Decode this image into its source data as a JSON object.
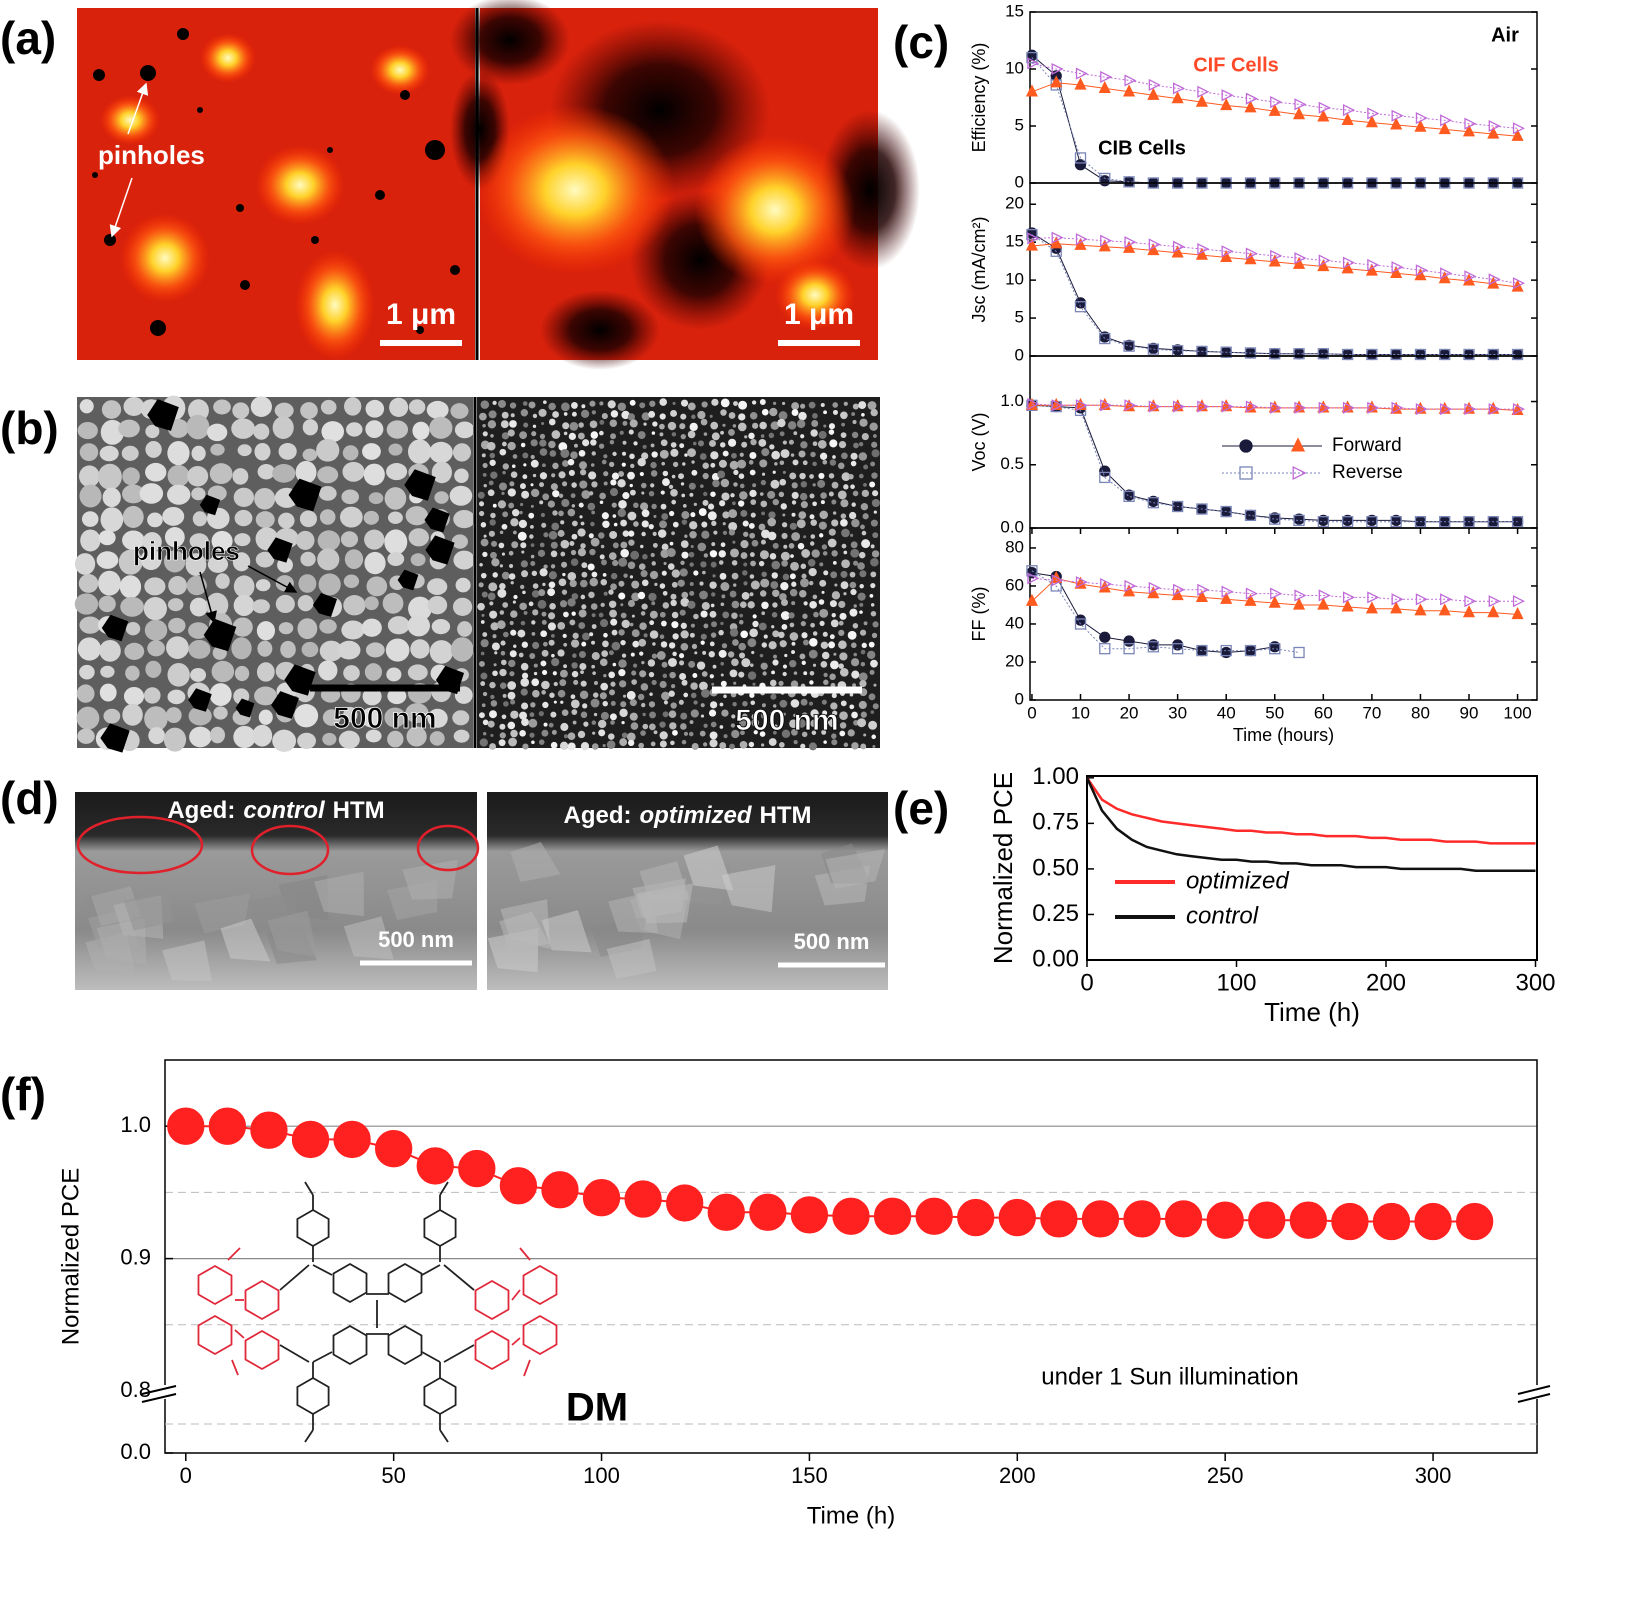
{
  "panel_labels": [
    "(a)",
    "(b)",
    "(c)",
    "(d)",
    "(e)",
    "(f)"
  ],
  "images": {
    "a": {
      "annotation": "pinholes",
      "scale_bars": [
        "1 μm",
        "1 μm"
      ]
    },
    "b": {
      "annotation": "pinholes",
      "scale_bars": [
        "500 nm",
        "500 nm"
      ]
    },
    "d": {
      "captions": [
        {
          "prefix": "Aged:",
          "emphasis": "control",
          "suffix": "HTM"
        },
        {
          "prefix": "Aged:",
          "emphasis": "optimized",
          "suffix": "HTM"
        }
      ],
      "scale_bars": [
        "500 nm",
        "500 nm"
      ]
    }
  },
  "chart_data": [
    {
      "type": "line",
      "ylabel": "Efficiency (%)",
      "annotations": [
        "Air",
        "CIF Cells",
        "CIB Cells"
      ],
      "x": [
        0,
        5,
        10,
        15,
        20,
        25,
        30,
        35,
        40,
        45,
        50,
        55,
        60,
        65,
        70,
        75,
        80,
        85,
        90,
        95,
        100
      ],
      "xlim": [
        -0.4,
        104
      ],
      "ylim": [
        0,
        15
      ],
      "yticks": [
        0,
        5,
        10,
        15
      ],
      "series": [
        {
          "color": "#1a1a3a",
          "marker": "circle",
          "filled": true,
          "line_style": "solid",
          "values": [
            11.2,
            9.4,
            1.6,
            0.2,
            0.1,
            0,
            0,
            0,
            0,
            0,
            0,
            0,
            0,
            0,
            0,
            0,
            0,
            0,
            0,
            0,
            0
          ]
        },
        {
          "color": "#7a86b8",
          "marker": "square",
          "filled": false,
          "line_style": "dotted",
          "values": [
            11.0,
            8.6,
            2.2,
            0.4,
            0.1,
            0,
            0,
            0,
            0,
            0,
            0,
            0,
            0,
            0,
            0,
            0,
            0,
            0,
            0,
            0,
            0
          ]
        },
        {
          "color": "#ff5a1f",
          "marker": "triangle",
          "filled": true,
          "line_style": "solid",
          "values": [
            8.0,
            8.8,
            8.6,
            8.3,
            8.0,
            7.7,
            7.4,
            7.1,
            6.8,
            6.6,
            6.3,
            6.0,
            5.8,
            5.5,
            5.3,
            5.1,
            4.9,
            4.7,
            4.5,
            4.3,
            4.1
          ]
        },
        {
          "color": "#c06ad8",
          "marker": "triangle-right",
          "filled": false,
          "line_style": "dotted",
          "values": [
            10.5,
            10.0,
            9.6,
            9.3,
            9.0,
            8.6,
            8.3,
            8.0,
            7.7,
            7.4,
            7.1,
            6.9,
            6.6,
            6.4,
            6.1,
            5.9,
            5.7,
            5.5,
            5.2,
            5.0,
            4.8
          ]
        }
      ]
    },
    {
      "type": "line",
      "ylabel": "Jsc (mA/cm²)",
      "x": [
        0,
        5,
        10,
        15,
        20,
        25,
        30,
        35,
        40,
        45,
        50,
        55,
        60,
        65,
        70,
        75,
        80,
        85,
        90,
        95,
        100
      ],
      "xlim": [
        -0.4,
        104
      ],
      "ylim": [
        0,
        22.8
      ],
      "yticks": [
        0,
        5,
        10,
        15,
        20
      ],
      "series": [
        {
          "color": "#1a1a3a",
          "marker": "circle",
          "filled": true,
          "line_style": "solid",
          "values": [
            16.2,
            14.2,
            7.0,
            2.5,
            1.4,
            1.0,
            0.8,
            0.6,
            0.5,
            0.4,
            0.3,
            0.3,
            0.3,
            0.2,
            0.2,
            0.2,
            0.2,
            0.2,
            0.2,
            0.2,
            0.2
          ]
        },
        {
          "color": "#7a86b8",
          "marker": "square",
          "filled": false,
          "line_style": "dotted",
          "values": [
            16.0,
            13.8,
            6.5,
            2.3,
            1.3,
            0.9,
            0.7,
            0.6,
            0.5,
            0.4,
            0.3,
            0.3,
            0.3,
            0.2,
            0.2,
            0.2,
            0.2,
            0.2,
            0.2,
            0.2,
            0.2
          ]
        },
        {
          "color": "#ff5a1f",
          "marker": "triangle",
          "filled": true,
          "line_style": "solid",
          "values": [
            14.5,
            14.8,
            14.6,
            14.4,
            14.2,
            13.9,
            13.6,
            13.3,
            13.0,
            12.7,
            12.4,
            12.1,
            11.8,
            11.5,
            11.2,
            10.9,
            10.6,
            10.2,
            9.9,
            9.5,
            9.1
          ]
        },
        {
          "color": "#c06ad8",
          "marker": "triangle-right",
          "filled": false,
          "line_style": "dotted",
          "values": [
            15.5,
            15.6,
            15.4,
            15.2,
            15.0,
            14.7,
            14.4,
            14.1,
            13.8,
            13.5,
            13.2,
            12.9,
            12.6,
            12.3,
            12.0,
            11.7,
            11.3,
            10.9,
            10.5,
            10.1,
            9.6
          ]
        }
      ]
    },
    {
      "type": "line",
      "ylabel": "Voc (V)",
      "legend": [
        "Forward",
        "Reverse"
      ],
      "x": [
        0,
        5,
        10,
        15,
        20,
        25,
        30,
        35,
        40,
        45,
        50,
        55,
        60,
        65,
        70,
        75,
        80,
        85,
        90,
        95,
        100
      ],
      "xlim": [
        -0.4,
        104
      ],
      "ylim": [
        0,
        1.36
      ],
      "yticks": [
        {
          "value": 0,
          "label": "0.0"
        },
        0.5,
        {
          "value": 1,
          "label": "1.0"
        }
      ],
      "series": [
        {
          "color": "#1a1a3a",
          "marker": "circle",
          "filled": true,
          "line_style": "solid",
          "values": [
            0.97,
            0.96,
            0.95,
            0.45,
            0.26,
            0.21,
            0.17,
            0.15,
            0.13,
            0.1,
            0.08,
            0.07,
            0.06,
            0.06,
            0.06,
            0.06,
            0.05,
            0.05,
            0.05,
            0.05,
            0.05
          ]
        },
        {
          "color": "#7a86b8",
          "marker": "square",
          "filled": false,
          "line_style": "dotted",
          "values": [
            0.97,
            0.96,
            0.93,
            0.4,
            0.25,
            0.2,
            0.17,
            0.15,
            0.13,
            0.1,
            0.07,
            0.06,
            0.05,
            0.05,
            0.05,
            0.05,
            0.05,
            0.05,
            0.05,
            0.05,
            0.05
          ]
        },
        {
          "color": "#ff5a1f",
          "marker": "triangle",
          "filled": true,
          "line_style": "solid",
          "values": [
            0.97,
            0.97,
            0.97,
            0.97,
            0.96,
            0.96,
            0.96,
            0.96,
            0.96,
            0.95,
            0.95,
            0.95,
            0.95,
            0.95,
            0.95,
            0.94,
            0.94,
            0.94,
            0.94,
            0.94,
            0.93
          ]
        },
        {
          "color": "#c06ad8",
          "marker": "triangle-right",
          "filled": false,
          "line_style": "dotted",
          "values": [
            0.98,
            0.97,
            0.97,
            0.97,
            0.97,
            0.96,
            0.96,
            0.96,
            0.96,
            0.96,
            0.95,
            0.95,
            0.95,
            0.95,
            0.95,
            0.95,
            0.94,
            0.94,
            0.94,
            0.94,
            0.94
          ]
        }
      ]
    },
    {
      "type": "line",
      "ylabel": "FF (%)",
      "xlabel": "Time (hours)",
      "x": [
        0,
        5,
        10,
        15,
        20,
        25,
        30,
        35,
        40,
        45,
        50,
        55,
        60,
        65,
        70,
        75,
        80,
        85,
        90,
        95,
        100
      ],
      "xlim": [
        -0.4,
        104
      ],
      "ylim": [
        0,
        90.5
      ],
      "yticks": [
        0,
        20,
        40,
        60,
        80
      ],
      "xticks": [
        0,
        10,
        20,
        30,
        40,
        50,
        60,
        70,
        80,
        90,
        100
      ],
      "series": [
        {
          "color": "#1a1a3a",
          "marker": "circle",
          "filled": true,
          "line_style": "solid",
          "values": [
            67,
            65,
            42,
            33,
            31,
            29,
            29,
            26,
            25,
            26,
            28,
            null,
            null,
            null,
            null,
            null,
            null,
            null,
            null,
            null,
            null
          ]
        },
        {
          "color": "#7a86b8",
          "marker": "square",
          "filled": false,
          "line_style": "dotted",
          "values": [
            68,
            60,
            40,
            27,
            27,
            28,
            27,
            26,
            26,
            26,
            27,
            25,
            null,
            null,
            null,
            null,
            null,
            null,
            null,
            null,
            null
          ]
        },
        {
          "color": "#ff5a1f",
          "marker": "triangle",
          "filled": true,
          "line_style": "solid",
          "values": [
            52,
            64,
            61,
            59,
            57,
            56,
            55,
            54,
            53,
            52,
            51,
            50,
            50,
            49,
            48,
            48,
            47,
            47,
            46,
            46,
            45
          ]
        },
        {
          "color": "#c06ad8",
          "marker": "triangle-right",
          "filled": false,
          "line_style": "dotted",
          "values": [
            64,
            63,
            62,
            61,
            60,
            59,
            58,
            58,
            57,
            56,
            56,
            55,
            55,
            54,
            54,
            53,
            53,
            53,
            52,
            52,
            52
          ]
        }
      ]
    },
    {
      "type": "line",
      "ylabel": "Normalized PCE",
      "xlabel": "Time (h)",
      "x": [
        0,
        10,
        20,
        30,
        40,
        50,
        60,
        70,
        80,
        90,
        100,
        110,
        120,
        130,
        140,
        150,
        160,
        170,
        180,
        190,
        200,
        210,
        220,
        230,
        240,
        250,
        260,
        270,
        280,
        290,
        300
      ],
      "xlim": [
        0,
        301
      ],
      "ylim": [
        0,
        1.01
      ],
      "xticks": [
        0,
        100,
        200,
        300
      ],
      "yticks": [
        {
          "value": 0,
          "label": "0.00"
        },
        {
          "value": 0.25,
          "label": "0.25"
        },
        {
          "value": 0.5,
          "label": "0.50"
        },
        {
          "value": 0.75,
          "label": "0.75"
        },
        {
          "value": 1,
          "label": "1.00"
        }
      ],
      "series": [
        {
          "name": "optimized",
          "color": "#ff2a2a",
          "line_style": "solid",
          "values": [
            1.0,
            0.88,
            0.83,
            0.8,
            0.78,
            0.76,
            0.75,
            0.74,
            0.73,
            0.72,
            0.71,
            0.71,
            0.7,
            0.7,
            0.69,
            0.69,
            0.68,
            0.68,
            0.68,
            0.67,
            0.67,
            0.66,
            0.66,
            0.66,
            0.65,
            0.65,
            0.65,
            0.64,
            0.64,
            0.64,
            0.64
          ]
        },
        {
          "name": "control",
          "color": "#111111",
          "line_style": "solid",
          "values": [
            1.0,
            0.82,
            0.72,
            0.66,
            0.62,
            0.6,
            0.58,
            0.57,
            0.56,
            0.55,
            0.55,
            0.54,
            0.54,
            0.53,
            0.53,
            0.52,
            0.52,
            0.52,
            0.51,
            0.51,
            0.51,
            0.5,
            0.5,
            0.5,
            0.5,
            0.5,
            0.49,
            0.49,
            0.49,
            0.49,
            0.49
          ]
        }
      ]
    },
    {
      "type": "line",
      "ylabel": "Normalized PCE",
      "xlabel": "Time (h)",
      "annotations": [
        "under 1 Sun illumination",
        "DM"
      ],
      "x": [
        0,
        10,
        20,
        30,
        40,
        50,
        60,
        70,
        80,
        90,
        100,
        110,
        120,
        130,
        140,
        150,
        160,
        170,
        180,
        190,
        200,
        210,
        220,
        230,
        240,
        250,
        260,
        270,
        280,
        290,
        300,
        310
      ],
      "xlim": [
        -5,
        325
      ],
      "ylim": [
        0.8,
        1.05
      ],
      "axis_break": true,
      "lower_yticks": [
        {
          "value": 0,
          "label": "0.0"
        }
      ],
      "yticks": [
        {
          "value": 0.8,
          "label": "0.8"
        },
        {
          "value": 0.9,
          "label": "0.9"
        },
        {
          "value": 1,
          "label": "1.0"
        }
      ],
      "minor_yticks": [
        0.85,
        0.95
      ],
      "grid": true,
      "xticks": [
        0,
        50,
        100,
        150,
        200,
        250,
        300
      ],
      "series": [
        {
          "color": "#ff2020",
          "marker": "circle",
          "filled": true,
          "line_style": "solid",
          "values": [
            1.0,
            1.0,
            0.997,
            0.99,
            0.99,
            0.983,
            0.97,
            0.968,
            0.955,
            0.952,
            0.946,
            0.945,
            0.942,
            0.935,
            0.935,
            0.933,
            0.932,
            0.932,
            0.932,
            0.931,
            0.931,
            0.93,
            0.93,
            0.93,
            0.93,
            0.929,
            0.929,
            0.929,
            0.928,
            0.928,
            0.928,
            0.928
          ]
        }
      ]
    }
  ]
}
